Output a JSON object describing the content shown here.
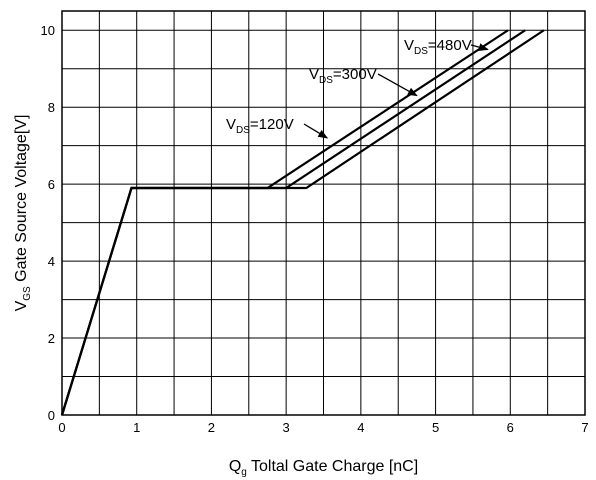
{
  "chart_data": {
    "type": "line",
    "title": "",
    "xlabel": {
      "main": "Q",
      "sub": "g",
      "rest": " Toltal Gate Charge [nC]"
    },
    "ylabel": {
      "main": "V",
      "sub": "GS",
      "rest": " Gate Source Voltage[V]"
    },
    "xlim": [
      0,
      7
    ],
    "ylim": [
      0,
      10.5
    ],
    "x_ticks": [
      "0",
      "1",
      "2",
      "3",
      "4",
      "5",
      "6",
      "7"
    ],
    "y_ticks": [
      "0",
      "2",
      "4",
      "6",
      "8",
      "10"
    ],
    "x_tick_values": [
      0,
      1,
      2,
      3,
      4,
      5,
      6,
      7
    ],
    "y_tick_values": [
      0,
      2,
      4,
      6,
      8,
      10
    ],
    "grid": true,
    "series": [
      {
        "name": "VDS=120V",
        "points": [
          [
            0,
            0
          ],
          [
            0.93,
            5.9
          ],
          [
            2.75,
            5.9
          ],
          [
            5.97,
            10
          ]
        ]
      },
      {
        "name": "VDS=300V",
        "points": [
          [
            0,
            0
          ],
          [
            0.93,
            5.9
          ],
          [
            3.0,
            5.9
          ],
          [
            6.2,
            10
          ]
        ]
      },
      {
        "name": "VDS=480V",
        "points": [
          [
            0,
            0
          ],
          [
            0.93,
            5.9
          ],
          [
            3.27,
            5.9
          ],
          [
            6.45,
            10
          ]
        ]
      }
    ],
    "annotations": [
      {
        "main": "V",
        "sub": "DS",
        "rest": "=120V",
        "tip": [
          3.55,
          7.2
        ]
      },
      {
        "main": "V",
        "sub": "DS",
        "rest": "=300V",
        "tip": [
          4.75,
          8.3
        ]
      },
      {
        "main": "V",
        "sub": "DS",
        "rest": "=480V",
        "tip": [
          5.7,
          9.5
        ]
      }
    ],
    "colors": {
      "line": "#000000",
      "grid": "#000000",
      "background": "#ffffff"
    }
  }
}
